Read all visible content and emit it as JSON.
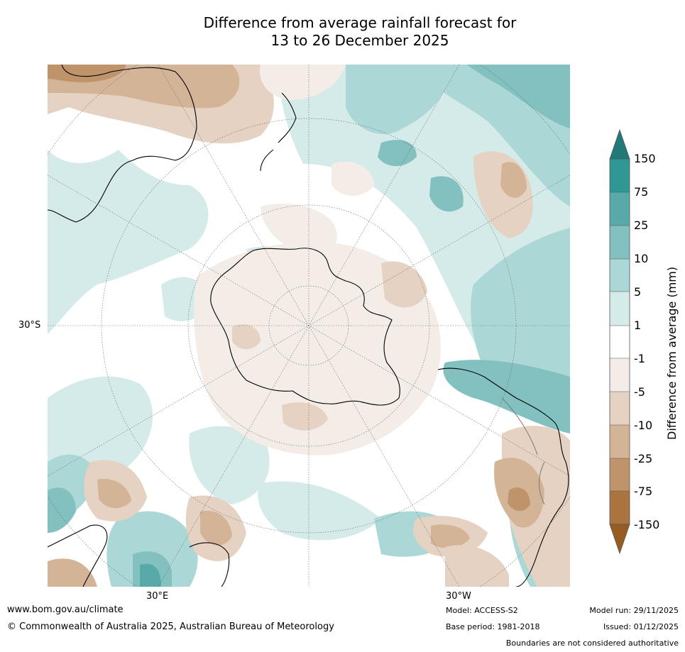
{
  "title": {
    "line1": "Difference from average rainfall forecast for",
    "line2": "13 to 26 December 2025"
  },
  "map": {
    "projection": "south polar stereographic",
    "lat_label": "30°S",
    "lon_labels": [
      "30°E",
      "30°W"
    ]
  },
  "legend": {
    "title": "Difference from average (mm)",
    "ticks": [
      "150",
      "75",
      "25",
      "10",
      "5",
      "1",
      "-1",
      "-5",
      "-10",
      "-25",
      "-75",
      "-150"
    ],
    "colors": {
      "wet_extreme": "#227a78",
      "wet_150": "#2f9895",
      "wet_75": "#58aaa8",
      "wet_25": "#82c1bf",
      "wet_10": "#abd8d6",
      "wet_5": "#d5ebea",
      "neutral": "#ffffff",
      "dry_1": "#f4ece6",
      "dry_5": "#e6d2c2",
      "dry_10": "#d4b497",
      "dry_25": "#c0946b",
      "dry_75": "#aa7440",
      "dry_extreme": "#965c20"
    }
  },
  "footer": {
    "url": "www.bom.gov.au/climate",
    "copyright": "© Commonwealth of Australia 2025, Australian Bureau of Meteorology",
    "model": "Model: ACCESS-S2",
    "base_period": "Base period: 1981-2018",
    "model_run": "Model run: 29/11/2025",
    "issued": "Issued: 01/12/2025",
    "disclaimer": "Boundaries are not considered authoritative"
  }
}
